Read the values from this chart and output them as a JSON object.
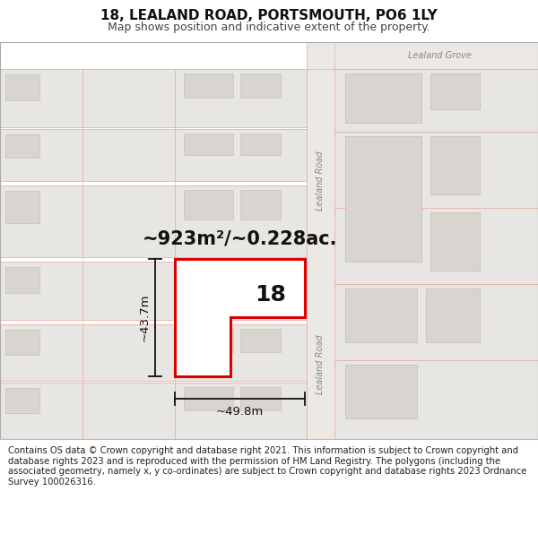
{
  "title": "18, LEALAND ROAD, PORTSMOUTH, PO6 1LY",
  "subtitle": "Map shows position and indicative extent of the property.",
  "footer": "Contains OS data © Crown copyright and database right 2021. This information is subject to Crown copyright and database rights 2023 and is reproduced with the permission of HM Land Registry. The polygons (including the associated geometry, namely x, y co-ordinates) are subject to Crown copyright and database rights 2023 Ordnance Survey 100026316.",
  "area_label": "~923m²/~0.228ac.",
  "number_label": "18",
  "dim_width": "~49.8m",
  "dim_height": "~43.7m",
  "road_label_upper": "Lealand Road",
  "road_label_lower": "Lealand Road",
  "grove_label": "Lealand Grove",
  "map_bg": "#f7f6f4",
  "road_bg": "#ece9e4",
  "building_fill_light": "#e8e6e3",
  "building_fill_mid": "#d8d5d0",
  "building_outline_pink": "#e8b0a8",
  "building_outline_grey": "#c8c0b8",
  "highlight_fill": "#ffffff",
  "highlight_outline": "#dd0000",
  "dim_color": "#111111",
  "text_dark": "#111111",
  "text_road": "#888884",
  "title_fontsize": 11,
  "subtitle_fontsize": 9,
  "footer_fontsize": 7.2,
  "area_fontsize": 15,
  "number_fontsize": 18,
  "dim_fontsize": 9.5,
  "road_fontsize": 7,
  "grove_fontsize": 7
}
